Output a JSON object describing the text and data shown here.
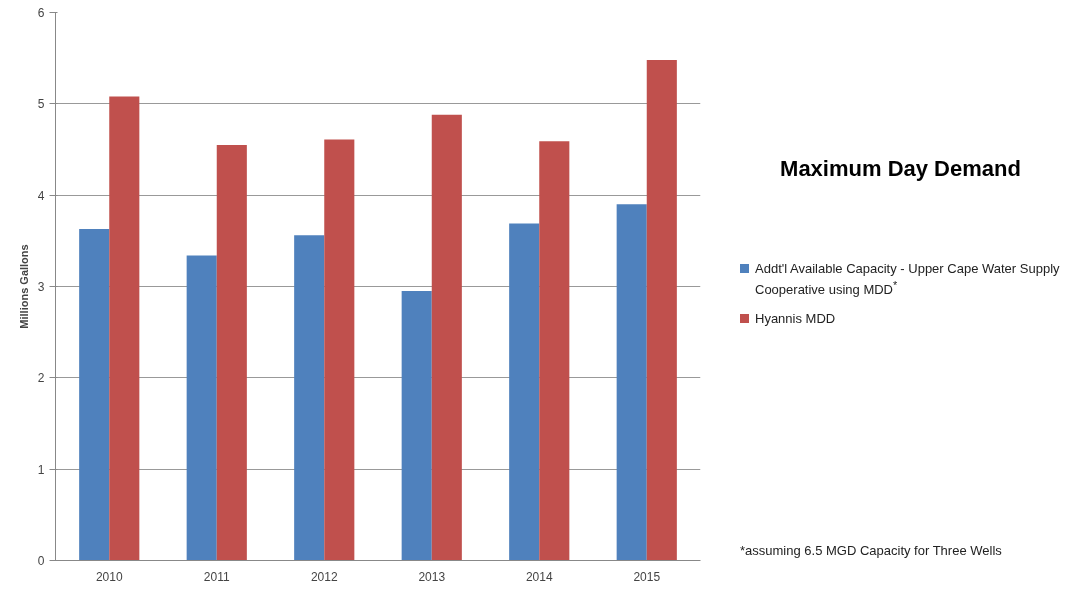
{
  "chart_data": {
    "type": "bar",
    "title": "Maximum Day Demand",
    "ylabel": "Millions Gallons",
    "categories": [
      "2010",
      "2011",
      "2012",
      "2013",
      "2014",
      "2015"
    ],
    "series": [
      {
        "name": "Addt'l Available Capacity  - Upper Cape Water Supply Cooperative using MDD$^{*}$",
        "color": "#4f81bd",
        "values": [
          3.63,
          3.34,
          3.56,
          2.95,
          3.69,
          3.9
        ]
      },
      {
        "name": "Hyannis MDD",
        "color": "#c0504d",
        "values": [
          5.08,
          4.55,
          4.61,
          4.88,
          4.59,
          5.48
        ]
      }
    ],
    "ylim": [
      0,
      6
    ],
    "yticks": [
      0,
      1,
      2,
      3,
      4,
      5,
      6
    ],
    "grid": "y",
    "legend": "right",
    "annotations": [
      "*assuming 6.5 MGD Capacity for Three Wells"
    ]
  }
}
